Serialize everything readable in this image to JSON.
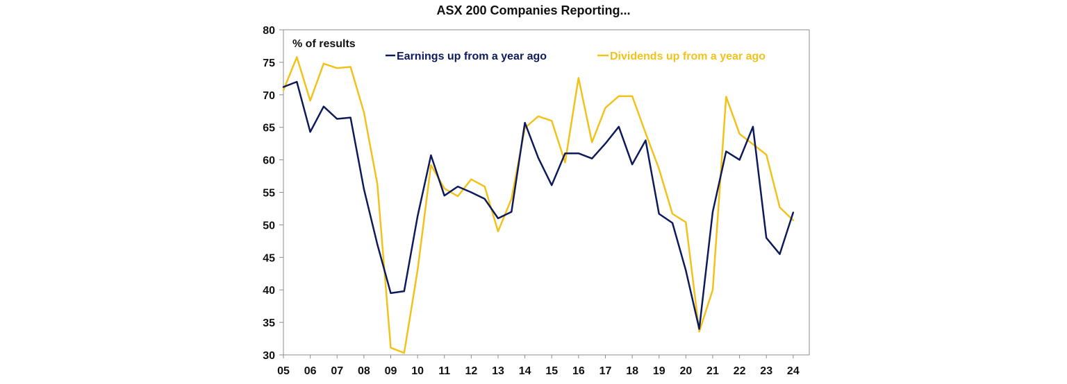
{
  "chart_data": {
    "type": "line",
    "title": "ASX 200 Companies Reporting...",
    "unit_label": "% of results",
    "xlabel": "",
    "ylabel": "",
    "ylim": [
      30,
      80
    ],
    "yticks": [
      30,
      35,
      40,
      45,
      50,
      55,
      60,
      65,
      70,
      75,
      80
    ],
    "xlim": [
      2005,
      2024.6
    ],
    "xtick_labels": [
      "05",
      "06",
      "07",
      "08",
      "09",
      "10",
      "11",
      "12",
      "13",
      "14",
      "15",
      "16",
      "17",
      "18",
      "19",
      "20",
      "21",
      "22",
      "23",
      "24"
    ],
    "grid": false,
    "legend_position": "top",
    "series": [
      {
        "name": "Earnings up from a year ago",
        "color": "#0d1a5c",
        "x": [
          2005.0,
          2005.5,
          2006.0,
          2006.5,
          2007.0,
          2007.5,
          2008.0,
          2008.5,
          2009.0,
          2009.5,
          2010.0,
          2010.5,
          2011.0,
          2011.5,
          2012.0,
          2012.5,
          2013.0,
          2013.5,
          2014.0,
          2014.5,
          2015.0,
          2015.5,
          2016.0,
          2016.5,
          2017.0,
          2017.5,
          2018.0,
          2018.5,
          2019.0,
          2019.5,
          2020.0,
          2020.5,
          2021.0,
          2021.5,
          2022.0,
          2022.5,
          2023.0,
          2023.5,
          2024.0
        ],
        "values": [
          71.2,
          72.0,
          64.3,
          68.2,
          66.3,
          66.5,
          55.5,
          47.0,
          39.5,
          39.8,
          51.3,
          60.7,
          54.5,
          55.9,
          55.0,
          54.0,
          51.0,
          52.0,
          65.7,
          60.3,
          56.1,
          61.0,
          61.0,
          60.2,
          62.5,
          65.1,
          59.3,
          63.0,
          51.7,
          50.3,
          43.0,
          34.0,
          52.0,
          61.3,
          60.0,
          65.1,
          48.0,
          45.5,
          51.9
        ]
      },
      {
        "name": "Dividends up from a year ago",
        "color": "#f2c21b",
        "x": [
          2005.0,
          2005.5,
          2006.0,
          2006.5,
          2007.0,
          2007.5,
          2008.0,
          2008.5,
          2009.0,
          2009.5,
          2010.0,
          2010.5,
          2011.0,
          2011.5,
          2012.0,
          2012.5,
          2013.0,
          2013.5,
          2014.0,
          2014.5,
          2015.0,
          2015.5,
          2016.0,
          2016.5,
          2017.0,
          2017.5,
          2018.0,
          2018.5,
          2019.0,
          2019.5,
          2020.0,
          2020.5,
          2021.0,
          2021.5,
          2022.0,
          2022.5,
          2023.0,
          2023.5,
          2024.0
        ],
        "values": [
          70.7,
          75.8,
          69.1,
          74.8,
          74.1,
          74.3,
          67.3,
          56.3,
          31.1,
          30.3,
          43.0,
          59.2,
          55.6,
          54.4,
          57.0,
          55.9,
          49.0,
          54.0,
          64.9,
          66.7,
          66.0,
          59.6,
          72.6,
          62.7,
          68.0,
          69.8,
          69.8,
          64.1,
          58.6,
          51.7,
          50.4,
          33.6,
          40.0,
          69.7,
          64.0,
          62.4,
          60.8,
          52.7,
          50.7
        ]
      }
    ]
  }
}
